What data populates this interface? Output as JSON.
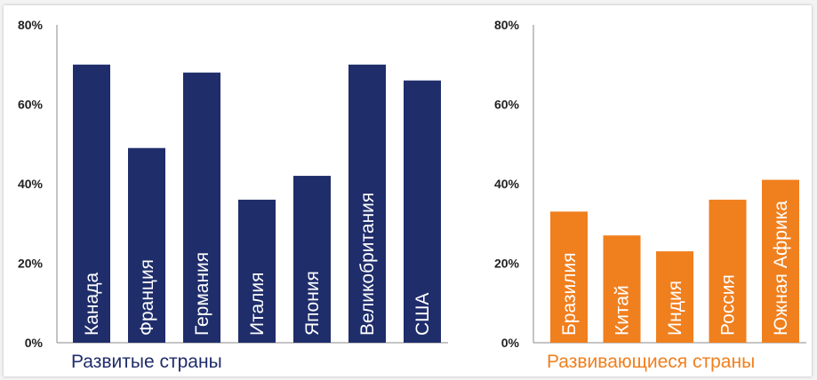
{
  "chart_data": [
    {
      "type": "bar",
      "title": "Развитые страны",
      "categories": [
        "Канада",
        "Франция",
        "Германия",
        "Италия",
        "Япония",
        "Великобритания",
        "США"
      ],
      "values": [
        70,
        49,
        68,
        36,
        42,
        70,
        66
      ],
      "ylim": [
        0,
        80
      ],
      "yticks": [
        "0%",
        "20%",
        "40%",
        "60%",
        "80%"
      ],
      "color": "#1f2d6b",
      "title_color": "#1f2d6b",
      "grid": false
    },
    {
      "type": "bar",
      "title": "Развивающиеся страны",
      "categories": [
        "Бразилия",
        "Китай",
        "Индия",
        "Россия",
        "Южная Африка"
      ],
      "values": [
        33,
        27,
        23,
        36,
        41
      ],
      "ylim": [
        0,
        80
      ],
      "yticks": [
        "0%",
        "20%",
        "40%",
        "60%",
        "80%"
      ],
      "color": "#f07f1e",
      "title_color": "#f07f1e",
      "grid": false
    }
  ]
}
